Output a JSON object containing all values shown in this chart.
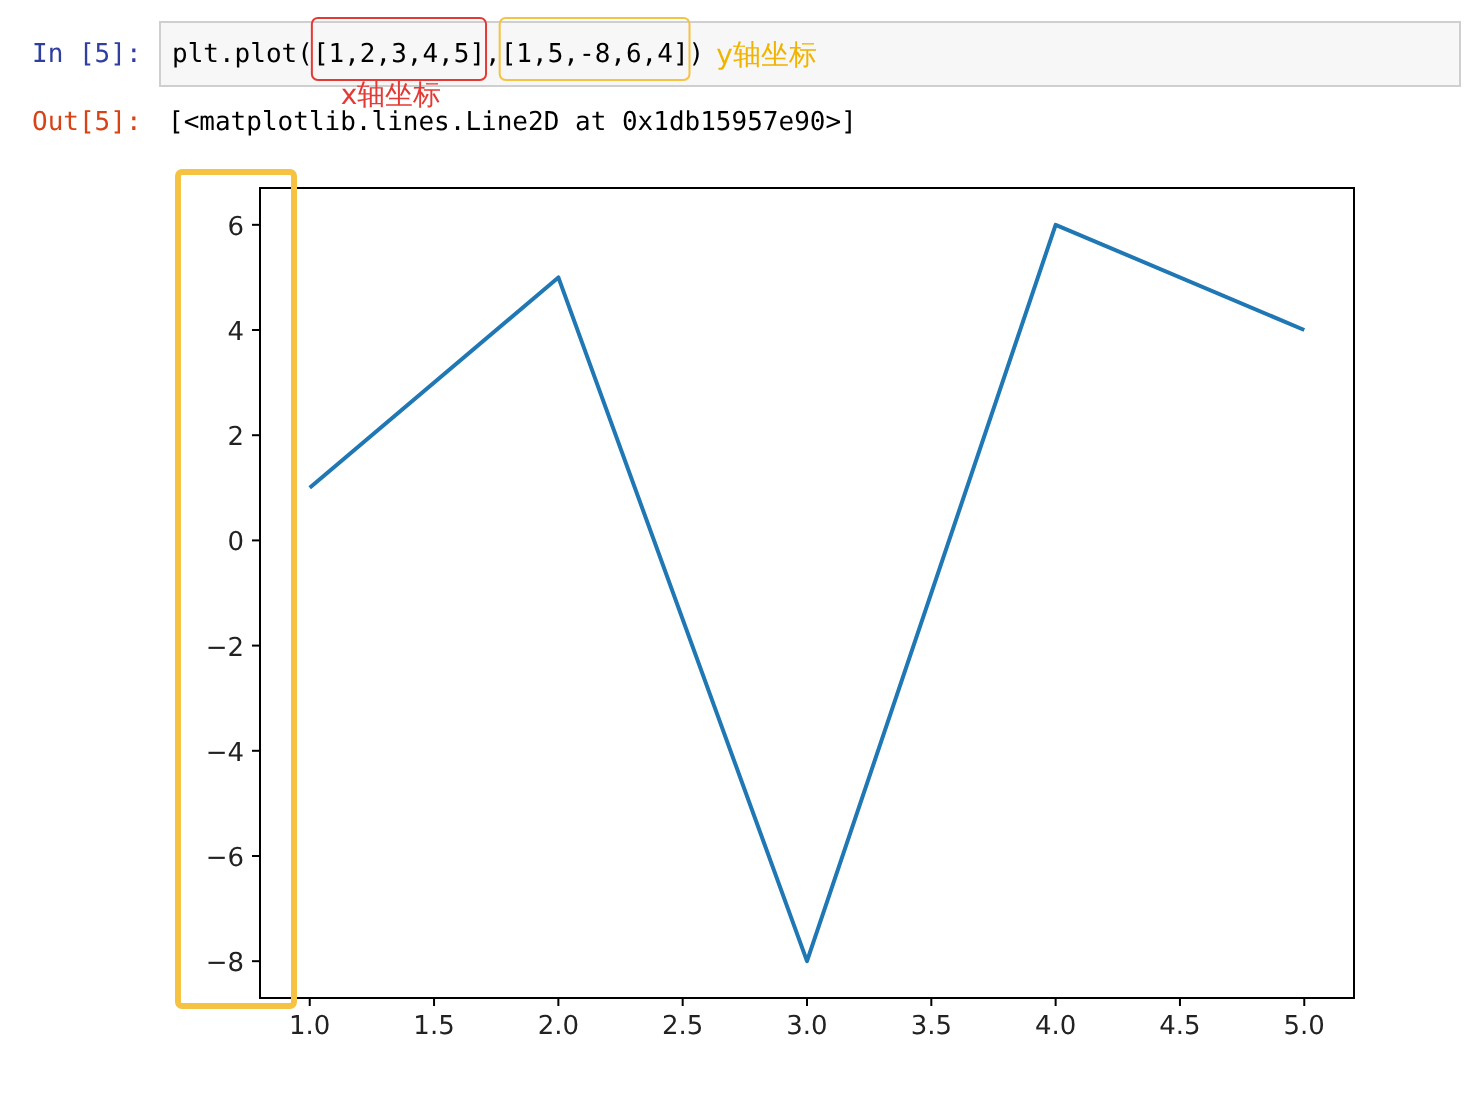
{
  "chart_data": {
    "type": "line",
    "annotations": [
      "In [5]:",
      "plt.plot([1,2,3,4,5],[1,5,-8,6,4])",
      "x轴坐标",
      "y轴坐标",
      "Out[5]:",
      "[<matplotlib.lines.Line2D at 0x1db15957e90>]"
    ],
    "x": [
      1,
      2,
      3,
      4,
      5
    ],
    "series": [
      {
        "color": "#1f77b4",
        "values": [
          1,
          5,
          -8,
          6,
          4
        ]
      }
    ],
    "xlim": [
      0.8,
      5.2
    ],
    "xticks": [
      {
        "value": 1,
        "label": "1.0"
      },
      {
        "value": 1.5,
        "label": "1.5"
      },
      {
        "value": 2,
        "label": "2.0"
      },
      {
        "value": 2.5,
        "label": "2.5"
      },
      {
        "value": 3,
        "label": "3.0"
      },
      {
        "value": 3.5,
        "label": "3.5"
      },
      {
        "value": 4,
        "label": "4.0"
      },
      {
        "value": 4.5,
        "label": "4.5"
      },
      {
        "value": 5,
        "label": "5.0"
      }
    ],
    "ylim": [
      -8.7,
      6.7
    ],
    "yticks": [
      {
        "value": -8,
        "label": "−8"
      },
      {
        "value": -6,
        "label": "−6"
      },
      {
        "value": -4,
        "label": "−4"
      },
      {
        "value": -2,
        "label": "−2"
      },
      0,
      2,
      4,
      6
    ],
    "grid": false,
    "marker": "none",
    "line_style": "solid"
  }
}
